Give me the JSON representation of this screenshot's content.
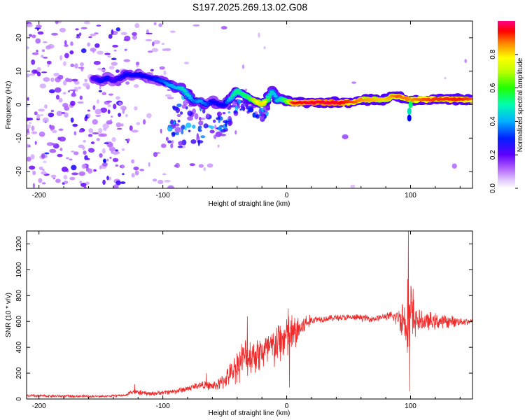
{
  "title": "S197.2025.269.13.02.G08",
  "chart_data": [
    {
      "type": "heatmap",
      "xlabel": "Height of straight line (km)",
      "ylabel": "Frequency (Hz)",
      "xlim": [
        -210,
        150
      ],
      "ylim": [
        -25,
        25
      ],
      "xticks": [
        -200,
        -100,
        0,
        100
      ],
      "yticks": [
        -20,
        -10,
        0,
        10,
        20
      ],
      "colorbar": {
        "label": "Normalized spectral amplitude",
        "range": [
          0,
          1
        ],
        "ticks": [
          0.0,
          0.2,
          0.4,
          0.6,
          0.8
        ],
        "colors": [
          "#ffffff",
          "#b870ff",
          "#6600ff",
          "#0000ff",
          "#00c0ff",
          "#00ff66",
          "#80ff00",
          "#ffff00",
          "#ff8000",
          "#ff0000",
          "#ff0088"
        ]
      },
      "ridge": {
        "x": [
          -155,
          -150,
          -145,
          -140,
          -130,
          -120,
          -110,
          -100,
          -95,
          -90,
          -85,
          -80,
          -75,
          -70,
          -65,
          -60,
          -55,
          -50,
          -45,
          -40,
          -35,
          -30,
          -25,
          -20,
          -17,
          -15,
          -12,
          -10,
          -7,
          -5,
          0,
          5,
          10,
          20,
          40,
          55,
          60,
          80,
          85,
          90,
          100,
          110,
          120,
          140,
          150
        ],
        "freq": [
          8,
          7,
          8,
          7,
          9,
          9,
          8,
          7,
          6,
          5,
          5,
          3,
          1,
          1,
          0,
          1,
          0,
          0,
          2,
          4,
          3,
          2,
          1,
          0,
          1,
          2,
          4,
          3,
          1,
          2,
          1,
          0.6,
          0.6,
          0.6,
          0.6,
          0.8,
          1.5,
          1.5,
          2.5,
          2.5,
          1.5,
          1.5,
          1.6,
          1.6,
          1.6
        ],
        "amplitude": [
          0.25,
          0.3,
          0.3,
          0.25,
          0.3,
          0.3,
          0.3,
          0.35,
          0.4,
          0.4,
          0.45,
          0.45,
          0.35,
          0.4,
          0.35,
          0.3,
          0.3,
          0.3,
          0.45,
          0.5,
          0.5,
          0.55,
          0.7,
          0.75,
          0.7,
          0.5,
          0.45,
          0.4,
          0.45,
          0.45,
          0.6,
          0.9,
          0.92,
          0.95,
          0.95,
          0.85,
          0.8,
          0.75,
          0.8,
          0.85,
          0.8,
          0.85,
          0.88,
          0.9,
          0.85
        ]
      }
    },
    {
      "type": "line",
      "xlabel": "Height of straight line (km)",
      "ylabel": "SNR (10 * v/v)",
      "xlim": [
        -210,
        150
      ],
      "ylim": [
        0,
        1300
      ],
      "xticks": [
        -200,
        -100,
        0,
        100
      ],
      "yticks": [
        0,
        200,
        400,
        600,
        800,
        1000,
        1200
      ],
      "color": "#ee2a2a",
      "envelope": {
        "x": [
          -210,
          -180,
          -150,
          -130,
          -125,
          -120,
          -110,
          -100,
          -90,
          -80,
          -70,
          -60,
          -55,
          -50,
          -45,
          -40,
          -35,
          -30,
          -25,
          -20,
          -15,
          -10,
          -5,
          0,
          5,
          10,
          15,
          20,
          25,
          30,
          40,
          50,
          60,
          70,
          80,
          90,
          95,
          100,
          105,
          110,
          120,
          130,
          140,
          150
        ],
        "y": [
          25,
          22,
          20,
          28,
          60,
          50,
          40,
          50,
          60,
          80,
          110,
          100,
          110,
          150,
          200,
          260,
          320,
          330,
          350,
          360,
          380,
          400,
          450,
          480,
          500,
          540,
          580,
          610,
          620,
          620,
          630,
          630,
          630,
          620,
          640,
          630,
          620,
          620,
          610,
          600,
          600,
          600,
          600,
          600
        ]
      },
      "noise": {
        "x": [
          -210,
          -130,
          -125,
          -100,
          -80,
          -60,
          -45,
          -40,
          -20,
          0,
          10,
          20,
          30,
          80,
          90,
          95,
          100,
          105,
          150
        ],
        "amplitude": [
          15,
          10,
          25,
          20,
          30,
          40,
          100,
          160,
          180,
          220,
          150,
          40,
          30,
          30,
          80,
          250,
          450,
          100,
          25
        ]
      },
      "spikes": [
        {
          "x": -123,
          "y": 115
        },
        {
          "x": -65,
          "y": 200
        },
        {
          "x": -32,
          "y": 640
        },
        {
          "x": 1,
          "y": 700
        },
        {
          "x": 2,
          "y": 90
        },
        {
          "x": 98,
          "y": 1310
        },
        {
          "x": 99,
          "y": 60
        }
      ]
    }
  ]
}
